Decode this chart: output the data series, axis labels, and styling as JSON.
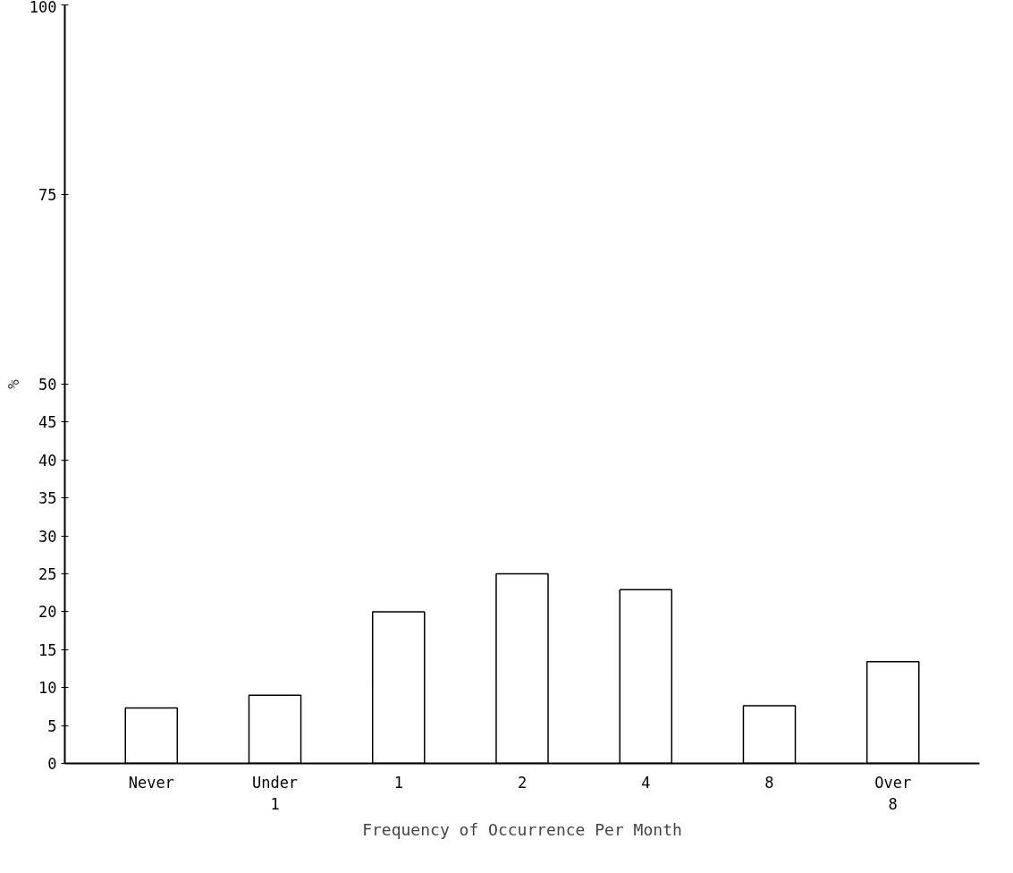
{
  "chart_data": {
    "type": "bar",
    "xlabel": "Frequency of Occurrence Per Month",
    "ylabel": "%",
    "categories": [
      "Never",
      "Under\n1",
      "1",
      "2",
      "4",
      "8",
      "Over\n8"
    ],
    "values": [
      7.3,
      9.0,
      20.0,
      25.0,
      22.9,
      7.6,
      13.4
    ],
    "color": "#ffffff",
    "ylim": [
      0,
      100
    ],
    "yticks": [
      0,
      5,
      10,
      15,
      20,
      25,
      30,
      35,
      40,
      45,
      50,
      75,
      100
    ],
    "grid": false
  }
}
